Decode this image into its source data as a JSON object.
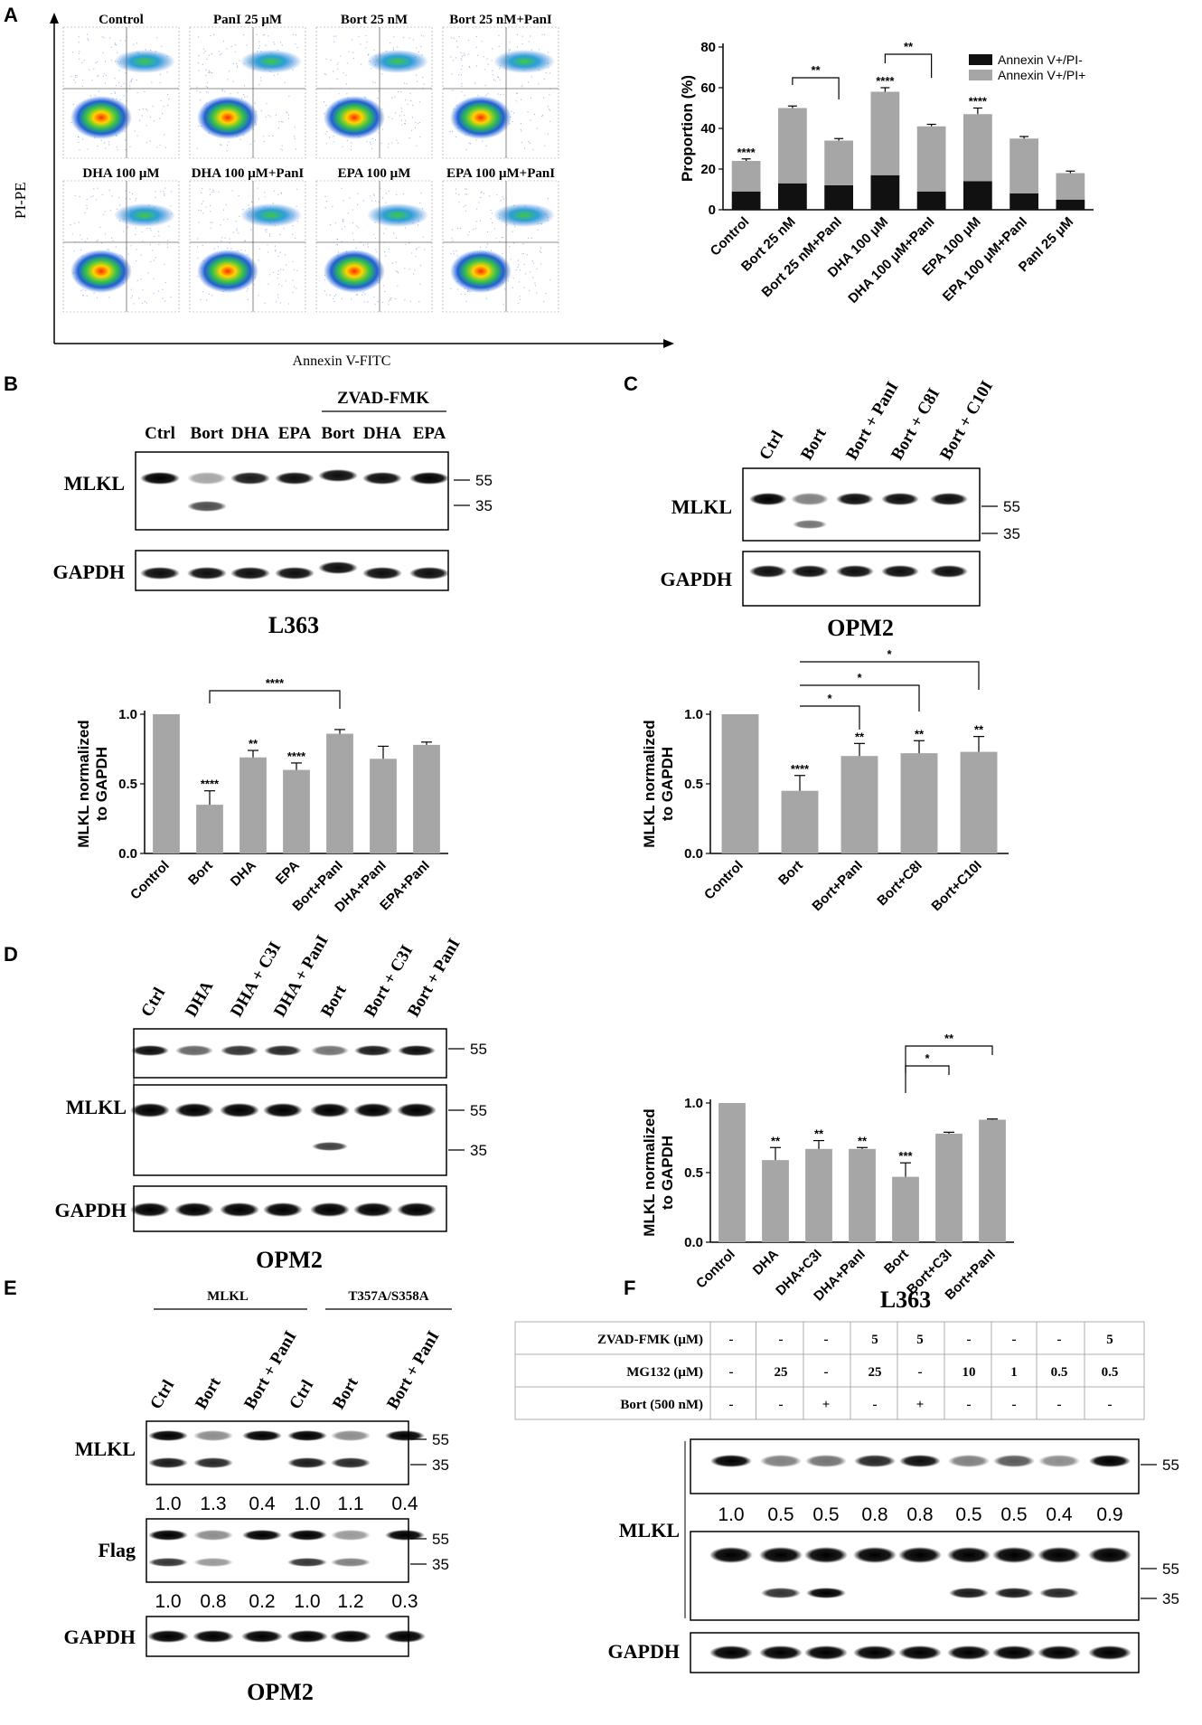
{
  "panel_letters": [
    "A",
    "B",
    "C",
    "D",
    "E",
    "F"
  ],
  "panelA": {
    "flow_titles": [
      "Control",
      "PanI 25 μM",
      "Bort 25 nM",
      "Bort 25 nM+PanI",
      "DHA 100 μM",
      "DHA 100 μM+PanI",
      "EPA 100 μM",
      "EPA 100 μM+PanI"
    ],
    "x_axis": "Annexin V-FITC",
    "y_axis": "PI-PE"
  },
  "panelB": {
    "cell_line": "L363",
    "zvad_label": "ZVAD-FMK",
    "lanes": [
      "Ctrl",
      "Bort",
      "DHA",
      "EPA",
      "Bort",
      "DHA",
      "EPA"
    ],
    "blots": [
      "MLKL",
      "GAPDH"
    ],
    "mw": [
      "55",
      "35"
    ]
  },
  "panelC": {
    "cell_line": "OPM2",
    "lanes": [
      "Ctrl",
      "Bort",
      "Bort + PanI",
      "Bort + C8I",
      "Bort + C10I"
    ],
    "blots": [
      "MLKL",
      "GAPDH"
    ],
    "mw": [
      "55",
      "35"
    ]
  },
  "panelD": {
    "cell_line": "OPM2",
    "lanes": [
      "Ctrl",
      "DHA",
      "DHA + C3I",
      "DHA + PanI",
      "Bort",
      "Bort + C3I",
      "Bort + PanI"
    ],
    "blots": [
      "MLKL",
      "GAPDH"
    ],
    "mw": [
      "55",
      "55",
      "35"
    ]
  },
  "panelE": {
    "cell_line": "OPM2",
    "group_labels": [
      "MLKL",
      "T357A/S358A"
    ],
    "lanes": [
      "Ctrl",
      "Bort",
      "Bort + PanI",
      "Ctrl",
      "Bort",
      "Bort + PanI"
    ],
    "blots": [
      "MLKL",
      "Flag",
      "GAPDH"
    ],
    "mw": [
      "55",
      "35",
      "55",
      "35"
    ],
    "quant_mlkl": [
      "1.0",
      "1.3",
      "0.4",
      "1.0",
      "1.1",
      "0.4"
    ],
    "quant_flag": [
      "1.0",
      "0.8",
      "0.2",
      "1.0",
      "1.2",
      "0.3"
    ]
  },
  "panelF": {
    "cell_line": "L363",
    "rows": [
      {
        "label": "ZVAD-FMK (μM)",
        "values": [
          "-",
          "-",
          "-",
          "5",
          "5",
          "-",
          "-",
          "-",
          "5"
        ]
      },
      {
        "label": "MG132 (μM)",
        "values": [
          "-",
          "25",
          "-",
          "25",
          "-",
          "10",
          "1",
          "0.5",
          "0.5"
        ]
      },
      {
        "label": "Bort (500 nM)",
        "values": [
          "-",
          "-",
          "+",
          "-",
          "+",
          "-",
          "-",
          "-",
          "-"
        ]
      }
    ],
    "blots": [
      "MLKL",
      "GAPDH"
    ],
    "mw": [
      "55",
      "55",
      "35"
    ],
    "quant": [
      "1.0",
      "0.5",
      "0.5",
      "0.8",
      "0.8",
      "0.5",
      "0.5",
      "0.4",
      "0.9"
    ]
  },
  "colors": {
    "bar_gray": "#a6a6a6",
    "bar_black": "#111111",
    "axis": "#000000"
  },
  "chart_data": [
    {
      "id": "A",
      "type": "bar",
      "stacked": true,
      "categories": [
        "Control",
        "Bort 25 nM",
        "Bort 25 nM+PanI",
        "DHA 100 μM",
        "DHA 100 μM+PanI",
        "EPA 100 μM",
        "EPA 100 μM+PanI",
        "PanI 25 μM"
      ],
      "series": [
        {
          "name": "Annexin V+/PI-",
          "values": [
            9,
            13,
            12,
            17,
            9,
            14,
            8,
            5
          ],
          "errors": [
            3,
            5,
            5,
            7,
            3,
            2,
            3,
            2
          ],
          "color": "#111111"
        },
        {
          "name": "Annexin V+/PI+",
          "values": [
            15,
            37,
            22,
            41,
            32,
            33,
            27,
            13
          ],
          "errors": [
            1,
            1,
            1,
            2,
            1,
            3,
            1,
            1
          ],
          "color": "#a6a6a6"
        }
      ],
      "ylabel": "Proportion (%)",
      "ylim": [
        0,
        80
      ],
      "yticks": [
        0,
        20,
        40,
        60,
        80
      ],
      "annotations": [
        "****",
        "",
        "",
        "****",
        "",
        "****",
        "",
        ""
      ],
      "brackets": [
        {
          "from": 1,
          "to": 2,
          "label": "**"
        },
        {
          "from": 3,
          "to": 4,
          "label": "**"
        }
      ],
      "legend": "top-right"
    },
    {
      "id": "B",
      "type": "bar",
      "categories": [
        "Control",
        "Bort",
        "DHA",
        "EPA",
        "Bort+PanI",
        "DHA+PanI",
        "EPA+PanI"
      ],
      "values": [
        1.0,
        0.35,
        0.69,
        0.6,
        0.86,
        0.68,
        0.78
      ],
      "errors": [
        0,
        0.1,
        0.05,
        0.05,
        0.03,
        0.09,
        0.02
      ],
      "ylabel": "MLKL normalized to GAPDH",
      "ylim": [
        0,
        1.0
      ],
      "yticks": [
        "0.0",
        "0.5",
        "1.0"
      ],
      "annotations": [
        "",
        "****",
        "**",
        "****",
        "",
        "",
        ""
      ],
      "brackets": [
        {
          "from": 1,
          "to": 4,
          "label": "****"
        }
      ]
    },
    {
      "id": "C",
      "type": "bar",
      "categories": [
        "Control",
        "Bort",
        "Bort+PanI",
        "Bort+C8I",
        "Bort+C10I"
      ],
      "values": [
        1.0,
        0.45,
        0.7,
        0.72,
        0.73
      ],
      "errors": [
        0,
        0.11,
        0.09,
        0.09,
        0.11
      ],
      "ylabel": "MLKL normalized to GAPDH",
      "ylim": [
        0,
        1.0
      ],
      "yticks": [
        "0.0",
        "0.5",
        "1.0"
      ],
      "annotations": [
        "",
        "****",
        "**",
        "**",
        "**"
      ],
      "brackets": [
        {
          "from": 1,
          "to": 2,
          "label": "*"
        },
        {
          "from": 1,
          "to": 3,
          "label": "*"
        },
        {
          "from": 1,
          "to": 4,
          "label": "*"
        }
      ]
    },
    {
      "id": "D",
      "type": "bar",
      "categories": [
        "Control",
        "DHA",
        "DHA+C3I",
        "DHA+PanI",
        "Bort",
        "Bort+C3I",
        "Bort+PanI"
      ],
      "values": [
        1.0,
        0.59,
        0.67,
        0.67,
        0.47,
        0.78,
        0.88
      ],
      "errors": [
        0,
        0.09,
        0.06,
        0.01,
        0.1,
        0.01,
        0.005
      ],
      "ylabel": "MLKL normalized to GAPDH",
      "ylim": [
        0,
        1.0
      ],
      "yticks": [
        "0.0",
        "0.5",
        "1.0"
      ],
      "annotations": [
        "",
        "**",
        "**",
        "**",
        "***",
        "",
        ""
      ],
      "brackets": [
        {
          "from": 4,
          "to": 5,
          "label": "*"
        },
        {
          "from": 4,
          "to": 6,
          "label": "**"
        }
      ]
    }
  ]
}
